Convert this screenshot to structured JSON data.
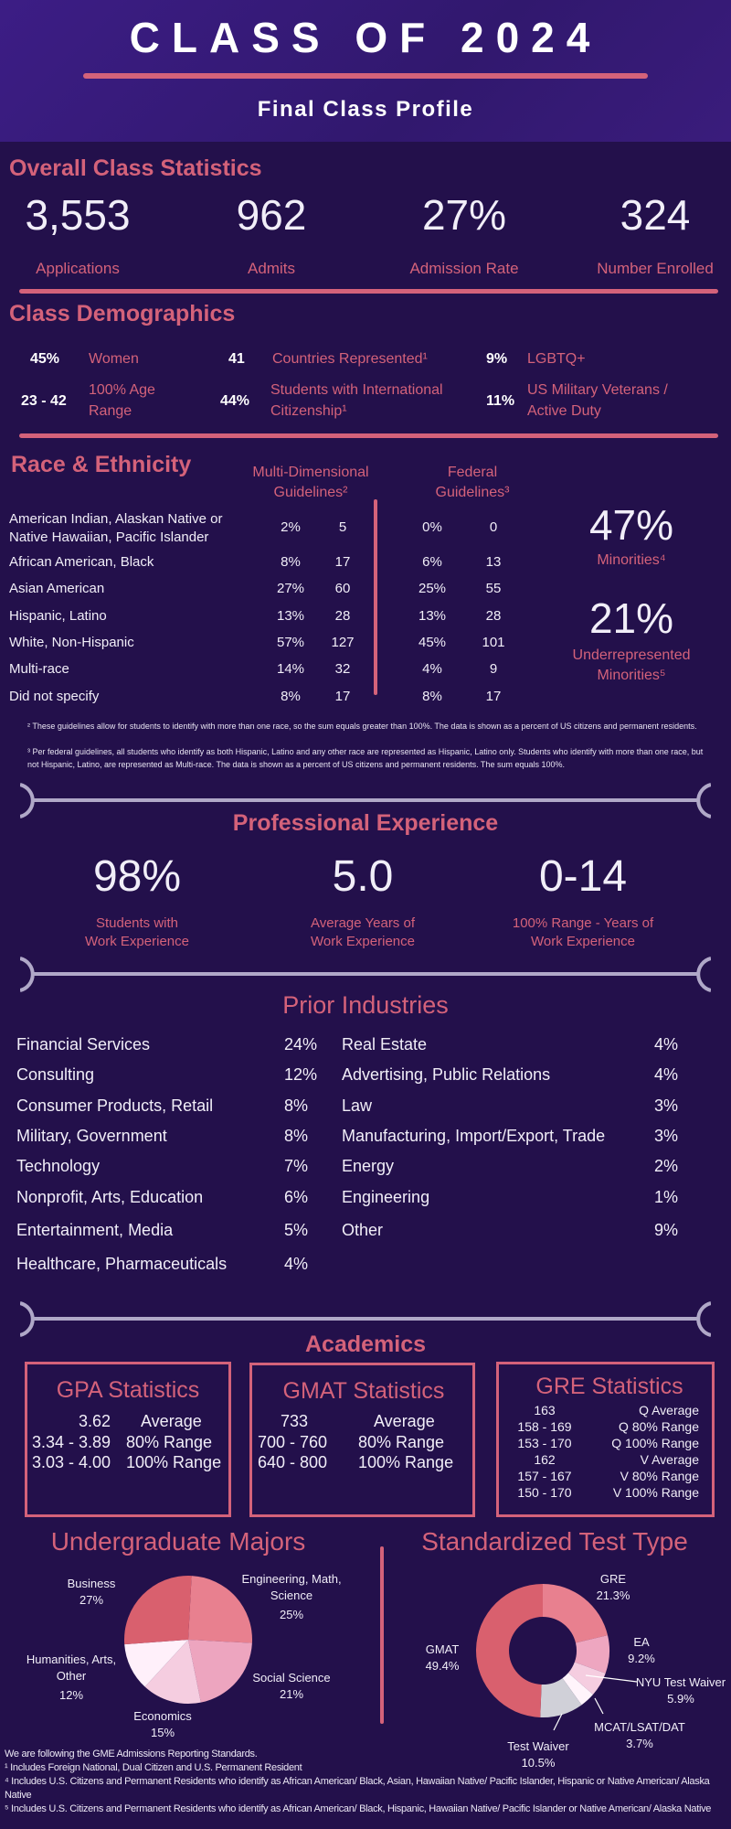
{
  "header": {
    "title": "CLASS OF 2024",
    "subtitle": "Final Class Profile"
  },
  "overall": {
    "heading": "Overall Class Statistics",
    "stats": [
      {
        "value": "3,553",
        "label": "Applications"
      },
      {
        "value": "962",
        "label": "Admits"
      },
      {
        "value": "27%",
        "label": "Admission Rate"
      },
      {
        "value": "324",
        "label": "Number Enrolled"
      }
    ]
  },
  "demographics": {
    "heading": "Class Demographics",
    "items": [
      {
        "value": "45%",
        "label": "Women"
      },
      {
        "value": "41",
        "label": "Countries Represented¹"
      },
      {
        "value": "9%",
        "label": "LGBTQ+"
      },
      {
        "value": "23 - 42",
        "label": "100% Age Range"
      },
      {
        "value": "44%",
        "label": "Students with International Citizenship¹"
      },
      {
        "value": "11%",
        "label": "US Military Veterans / Active Duty"
      }
    ]
  },
  "race": {
    "heading": "Race & Ethnicity",
    "md_header": "Multi-Dimensional Guidelines²",
    "fed_header": "Federal Guidelines³",
    "rows": [
      {
        "label": "American Indian, Alaskan Native or Native Hawaiian, Pacific Islander",
        "md_pct": "2%",
        "md_n": "5",
        "fed_pct": "0%",
        "fed_n": "0"
      },
      {
        "label": "African American, Black",
        "md_pct": "8%",
        "md_n": "17",
        "fed_pct": "6%",
        "fed_n": "13"
      },
      {
        "label": "Asian American",
        "md_pct": "27%",
        "md_n": "60",
        "fed_pct": "25%",
        "fed_n": "55"
      },
      {
        "label": "Hispanic, Latino",
        "md_pct": "13%",
        "md_n": "28",
        "fed_pct": "13%",
        "fed_n": "28"
      },
      {
        "label": "White, Non-Hispanic",
        "md_pct": "57%",
        "md_n": "127",
        "fed_pct": "45%",
        "fed_n": "101"
      },
      {
        "label": "Multi-race",
        "md_pct": "14%",
        "md_n": "32",
        "fed_pct": "4%",
        "fed_n": "9"
      },
      {
        "label": "Did not specify",
        "md_pct": "8%",
        "md_n": "17",
        "fed_pct": "8%",
        "fed_n": "17"
      }
    ],
    "minorities": {
      "value": "47%",
      "label": "Minorities⁴"
    },
    "urm": {
      "value": "21%",
      "label": "Underrepresented Minorities⁵"
    },
    "footnote2": "² These guidelines allow for students to identify with more than one race, so the sum equals greater than 100%. The data is shown as a percent of US citizens and permanent residents.",
    "footnote3": "³ Per federal guidelines, all students who identify as both Hispanic, Latino and any other race are represented as Hispanic, Latino only. Students who identify with more than one race, but not Hispanic, Latino, are represented as Multi-race. The data is shown as a percent of US citizens and permanent residents. The sum equals 100%."
  },
  "experience": {
    "heading": "Professional Experience",
    "stats": [
      {
        "value": "98%",
        "label1": "Students with",
        "label2": "Work Experience"
      },
      {
        "value": "5.0",
        "label1": "Average Years of",
        "label2": "Work Experience"
      },
      {
        "value": "0-14",
        "label1": "100% Range - Years of",
        "label2": "Work Experience"
      }
    ]
  },
  "industries": {
    "heading": "Prior Industries",
    "left": [
      {
        "name": "Financial Services",
        "pct": "24%"
      },
      {
        "name": "Consulting",
        "pct": "12%"
      },
      {
        "name": "Consumer Products, Retail",
        "pct": "8%"
      },
      {
        "name": "Military, Government",
        "pct": "8%"
      },
      {
        "name": "Technology",
        "pct": "7%"
      },
      {
        "name": "Nonprofit, Arts, Education",
        "pct": "6%"
      },
      {
        "name": "Entertainment, Media",
        "pct": "5%"
      },
      {
        "name": "Healthcare, Pharmaceuticals",
        "pct": "4%"
      }
    ],
    "right": [
      {
        "name": "Real Estate",
        "pct": "4%"
      },
      {
        "name": "Advertising, Public Relations",
        "pct": "4%"
      },
      {
        "name": "Law",
        "pct": "3%"
      },
      {
        "name": "Manufacturing, Import/Export, Trade",
        "pct": "3%"
      },
      {
        "name": "Energy",
        "pct": "2%"
      },
      {
        "name": "Engineering",
        "pct": "1%"
      },
      {
        "name": "Other",
        "pct": "9%"
      }
    ]
  },
  "academics": {
    "heading": "Academics",
    "gpa": {
      "title": "GPA Statistics",
      "rows": [
        {
          "v": "3.62",
          "l": "Average"
        },
        {
          "v": "3.34 - 3.89",
          "l": "80% Range"
        },
        {
          "v": "3.03 - 4.00",
          "l": "100% Range"
        }
      ]
    },
    "gmat": {
      "title": "GMAT Statistics",
      "rows": [
        {
          "v": "733",
          "l": "Average"
        },
        {
          "v": "700 - 760",
          "l": "80% Range"
        },
        {
          "v": "640 - 800",
          "l": "100% Range"
        }
      ]
    },
    "gre": {
      "title": "GRE Statistics",
      "rows": [
        {
          "v": "163",
          "l": "Q Average"
        },
        {
          "v": "158 - 169",
          "l": "Q 80% Range"
        },
        {
          "v": "153 - 170",
          "l": "Q 100% Range"
        },
        {
          "v": "162",
          "l": "V Average"
        },
        {
          "v": "157 - 167",
          "l": "V 80% Range"
        },
        {
          "v": "150 - 170",
          "l": "V 100% Range"
        }
      ]
    }
  },
  "chart_data": [
    {
      "type": "pie",
      "title": "Undergraduate Majors",
      "slices": [
        {
          "label": "Engineering, Math, Science",
          "value": 25,
          "display": "25%",
          "color": "#e8808f"
        },
        {
          "label": "Social Science",
          "value": 21,
          "display": "21%",
          "color": "#eda5bf"
        },
        {
          "label": "Economics",
          "value": 15,
          "display": "15%",
          "color": "#f5cde0"
        },
        {
          "label": "Humanities, Arts, Other",
          "value": 12,
          "display": "12%",
          "color": "#fff0fa"
        },
        {
          "label": "Business",
          "value": 27,
          "display": "27%",
          "color": "#d9606e"
        }
      ]
    },
    {
      "type": "pie",
      "title": "Standardized Test Type",
      "donut": true,
      "slices": [
        {
          "label": "GRE",
          "value": 21.3,
          "display": "21.3%",
          "color": "#e8808f"
        },
        {
          "label": "EA",
          "value": 9.2,
          "display": "9.2%",
          "color": "#eea6c0"
        },
        {
          "label": "NYU Test Waiver",
          "value": 5.9,
          "display": "5.9%",
          "color": "#f5cde0"
        },
        {
          "label": "MCAT/LSAT/DAT",
          "value": 3.7,
          "display": "3.7%",
          "color": "#fff4fb"
        },
        {
          "label": "Test Waiver",
          "value": 10.5,
          "display": "10.5%",
          "color": "#d0d0d8"
        },
        {
          "label": "GMAT",
          "value": 49.4,
          "display": "49.4%",
          "color": "#d9606e"
        }
      ]
    }
  ],
  "footer": {
    "lines": [
      "We are following the GME Admissions Reporting Standards.",
      "¹ Includes Foreign National, Dual Citizen and U.S. Permanent Resident",
      "⁴ Includes U.S. Citizens and Permanent Residents who identify as African American/ Black, Asian, Hawaiian Native/ Pacific Islander, Hispanic or Native American/ Alaska Native",
      "⁵ Includes U.S. Citizens and Permanent Residents who identify as African American/ Black, Hispanic, Hawaiian Native/ Pacific Islander or Native American/ Alaska Native"
    ]
  }
}
